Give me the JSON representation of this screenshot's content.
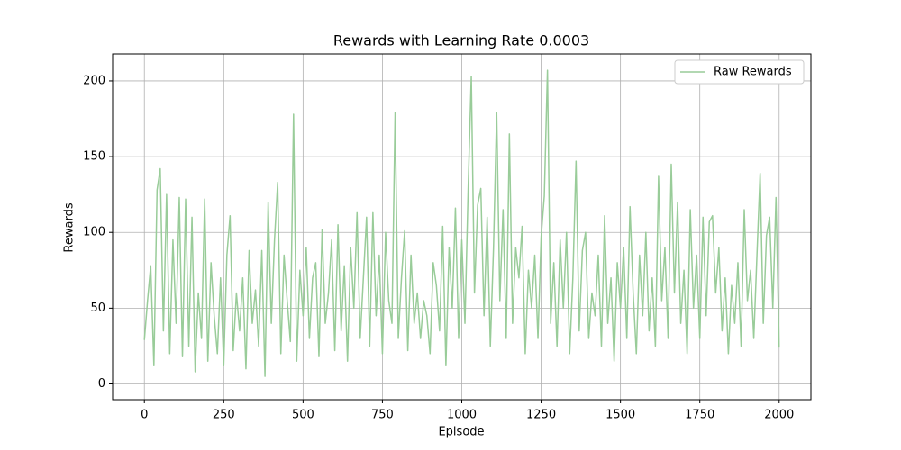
{
  "chart_data": {
    "type": "line",
    "title": "Rewards with Learning Rate 0.0003",
    "x_label": "Episode",
    "y_label": "Rewards",
    "x": [
      0,
      10,
      20,
      30,
      40,
      50,
      60,
      70,
      80,
      90,
      100,
      110,
      120,
      130,
      140,
      150,
      160,
      170,
      180,
      190,
      200,
      210,
      220,
      230,
      240,
      250,
      260,
      270,
      280,
      290,
      300,
      310,
      320,
      330,
      340,
      350,
      360,
      370,
      380,
      390,
      400,
      410,
      420,
      430,
      440,
      450,
      460,
      470,
      480,
      490,
      500,
      510,
      520,
      530,
      540,
      550,
      560,
      570,
      580,
      590,
      600,
      610,
      620,
      630,
      640,
      650,
      660,
      670,
      680,
      690,
      700,
      710,
      720,
      730,
      740,
      750,
      760,
      770,
      780,
      790,
      800,
      810,
      820,
      830,
      840,
      850,
      860,
      870,
      880,
      890,
      900,
      910,
      920,
      930,
      940,
      950,
      960,
      970,
      980,
      990,
      1000,
      1010,
      1020,
      1030,
      1040,
      1050,
      1060,
      1070,
      1080,
      1090,
      1100,
      1110,
      1120,
      1130,
      1140,
      1150,
      1160,
      1170,
      1180,
      1190,
      1200,
      1210,
      1220,
      1230,
      1240,
      1250,
      1260,
      1270,
      1280,
      1290,
      1300,
      1310,
      1320,
      1330,
      1340,
      1350,
      1360,
      1370,
      1380,
      1390,
      1400,
      1410,
      1420,
      1430,
      1440,
      1450,
      1460,
      1470,
      1480,
      1490,
      1500,
      1510,
      1520,
      1530,
      1540,
      1550,
      1560,
      1570,
      1580,
      1590,
      1600,
      1610,
      1620,
      1630,
      1640,
      1650,
      1660,
      1670,
      1680,
      1690,
      1700,
      1710,
      1720,
      1730,
      1740,
      1750,
      1760,
      1770,
      1780,
      1790,
      1800,
      1810,
      1820,
      1830,
      1840,
      1850,
      1860,
      1870,
      1880,
      1890,
      1900,
      1910,
      1920,
      1930,
      1940,
      1950,
      1960,
      1970,
      1980,
      1990,
      2000
    ],
    "series": [
      {
        "name": "Raw Rewards",
        "color": "#99cc99",
        "values": [
          29,
          55,
          78,
          12,
          128,
          142,
          35,
          125,
          20,
          95,
          40,
          123,
          18,
          122,
          25,
          110,
          8,
          60,
          30,
          122,
          15,
          80,
          45,
          20,
          70,
          12,
          85,
          111,
          22,
          60,
          35,
          70,
          10,
          88,
          40,
          62,
          25,
          88,
          5,
          120,
          40,
          95,
          133,
          20,
          85,
          55,
          28,
          178,
          15,
          75,
          45,
          90,
          30,
          70,
          80,
          18,
          102,
          40,
          60,
          95,
          22,
          105,
          35,
          78,
          15,
          90,
          50,
          113,
          30,
          70,
          110,
          25,
          113,
          45,
          85,
          20,
          100,
          55,
          40,
          179,
          30,
          70,
          101,
          22,
          85,
          40,
          60,
          30,
          55,
          45,
          20,
          80,
          65,
          35,
          104,
          12,
          90,
          50,
          116,
          30,
          95,
          40,
          128,
          203,
          60,
          118,
          129,
          45,
          110,
          25,
          90,
          179,
          55,
          115,
          30,
          165,
          40,
          90,
          70,
          104,
          20,
          75,
          50,
          85,
          30,
          97,
          124,
          207,
          40,
          80,
          25,
          95,
          50,
          100,
          20,
          70,
          147,
          35,
          88,
          100,
          30,
          60,
          45,
          85,
          25,
          111,
          40,
          70,
          15,
          80,
          50,
          90,
          30,
          117,
          60,
          20,
          85,
          45,
          100,
          35,
          70,
          25,
          137,
          55,
          90,
          30,
          145,
          60,
          120,
          40,
          75,
          20,
          115,
          50,
          85,
          30,
          110,
          45,
          107,
          111,
          60,
          90,
          35,
          70,
          20,
          65,
          40,
          80,
          25,
          115,
          55,
          75,
          30,
          85,
          139,
          40,
          98,
          110,
          50,
          123,
          24
        ]
      }
    ],
    "xlim": [
      -100,
      2100
    ],
    "ylim": [
      -10.4,
      217.8
    ],
    "xticks": [
      0,
      250,
      500,
      750,
      1000,
      1250,
      1500,
      1750,
      2000
    ],
    "yticks": [
      0,
      50,
      100,
      150,
      200
    ],
    "grid": true,
    "legend": "upper right"
  }
}
